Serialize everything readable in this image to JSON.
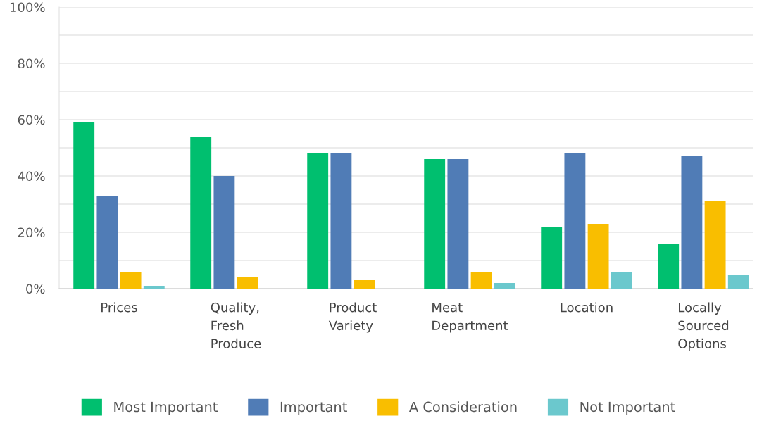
{
  "chart_data": {
    "type": "bar",
    "categories": [
      "Prices",
      "Quality,\nFresh\nProduce",
      "Product\nVariety",
      "Meat\nDepartment",
      "Location",
      "Locally\nSourced\nOptions"
    ],
    "series": [
      {
        "name": "Most Important",
        "color": "#00bf6f",
        "values": [
          59,
          54,
          48,
          46,
          22,
          16
        ]
      },
      {
        "name": "Important",
        "color": "#507cb6",
        "values": [
          33,
          40,
          48,
          46,
          48,
          47
        ]
      },
      {
        "name": "A Consideration",
        "color": "#f9be00",
        "values": [
          6,
          4,
          3,
          6,
          23,
          31
        ]
      },
      {
        "name": "Not Important",
        "color": "#6bc8cd",
        "values": [
          1,
          0,
          0,
          2,
          6,
          5
        ]
      }
    ],
    "ylim": [
      0,
      100
    ],
    "yticks": [
      {
        "value": 0,
        "label": "0%"
      },
      {
        "value": 10,
        "label": null
      },
      {
        "value": 20,
        "label": "20%"
      },
      {
        "value": 30,
        "label": null
      },
      {
        "value": 40,
        "label": "40%"
      },
      {
        "value": 50,
        "label": null
      },
      {
        "value": 60,
        "label": "60%"
      },
      {
        "value": 70,
        "label": null
      },
      {
        "value": 80,
        "label": "80%"
      },
      {
        "value": 90,
        "label": null
      },
      {
        "value": 100,
        "label": "100%"
      }
    ],
    "grid": "y",
    "legend": "bottom"
  }
}
